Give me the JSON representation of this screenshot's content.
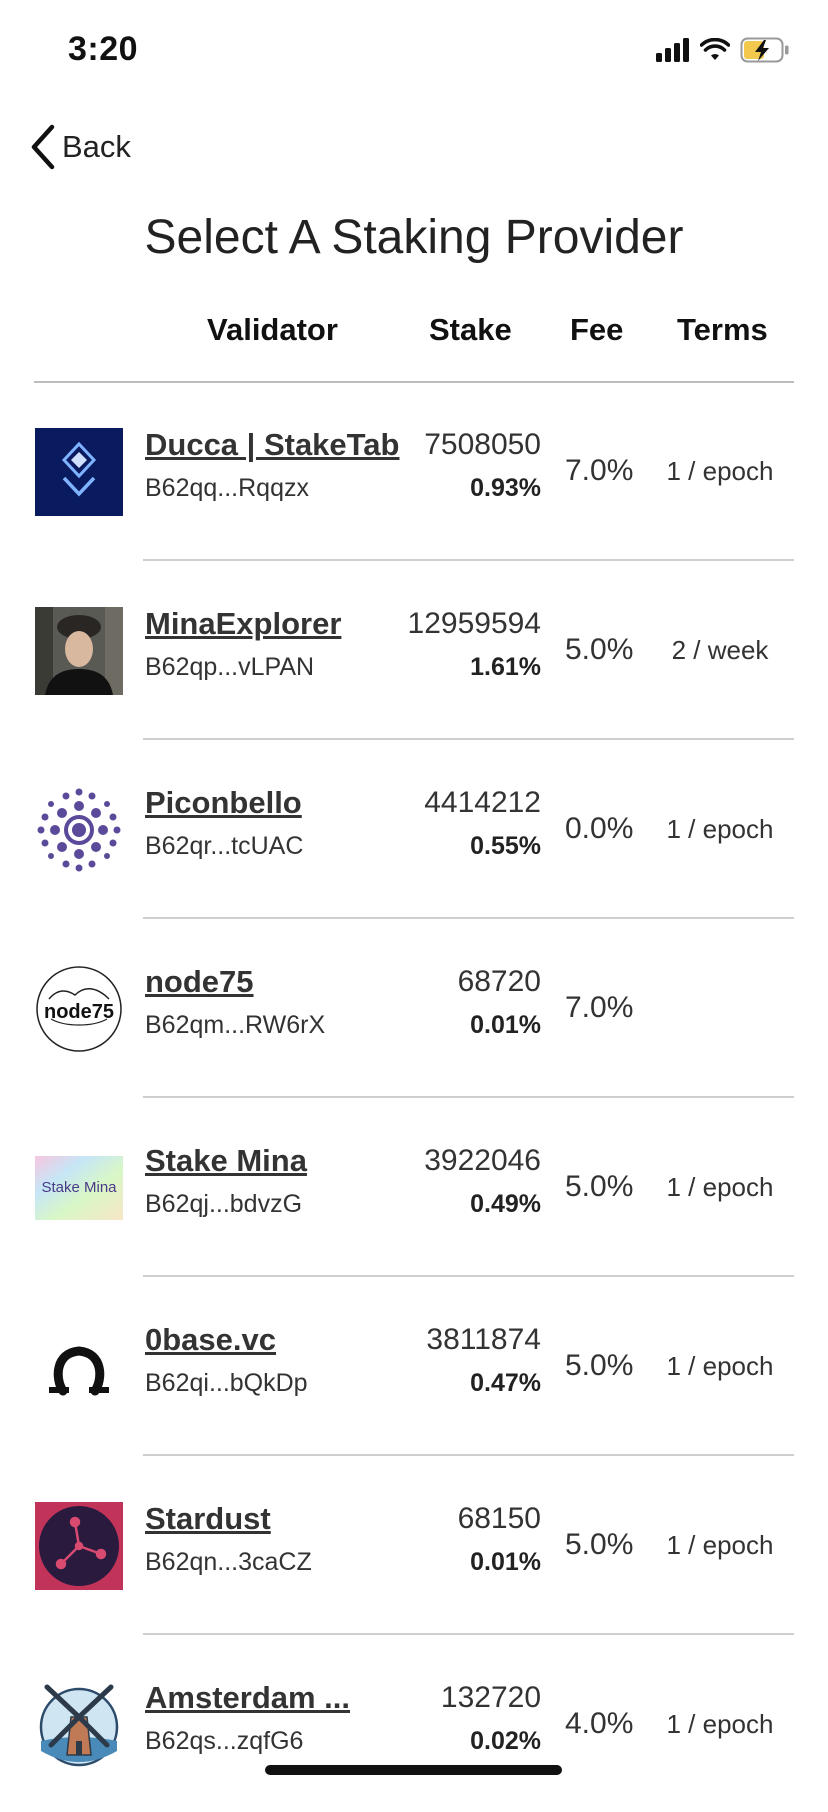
{
  "status_bar": {
    "time": "3:20"
  },
  "nav": {
    "back_label": "Back"
  },
  "page": {
    "title": "Select A Staking Provider"
  },
  "columns": {
    "validator": "Validator",
    "stake": "Stake",
    "fee": "Fee",
    "terms": "Terms"
  },
  "providers": [
    {
      "name": "Ducca | StakeTab",
      "address": "B62qq...Rqqzx",
      "stake": "7508050",
      "percent": "0.93%",
      "fee": "7.0%",
      "terms": "1 / epoch",
      "logo": "ducca-logo"
    },
    {
      "name": "MinaExplorer",
      "address": "B62qp...vLPAN",
      "stake": "12959594",
      "percent": "1.61%",
      "fee": "5.0%",
      "terms": "2 / week",
      "logo": "minaexplorer-avatar"
    },
    {
      "name": "Piconbello",
      "address": "B62qr...tcUAC",
      "stake": "4414212",
      "percent": "0.55%",
      "fee": "0.0%",
      "terms": "1 / epoch",
      "logo": "piconbello-logo"
    },
    {
      "name": "node75",
      "address": "B62qm...RW6rX",
      "stake": "68720",
      "percent": "0.01%",
      "fee": "7.0%",
      "terms": "",
      "logo": "node75-logo"
    },
    {
      "name": "Stake Mina",
      "address": "B62qj...bdvzG",
      "stake": "3922046",
      "percent": "0.49%",
      "fee": "5.0%",
      "terms": "1 / epoch",
      "logo": "stake-mina-logo",
      "logo_text": "Stake Mina"
    },
    {
      "name": "0base.vc",
      "address": "B62qi...bQkDp",
      "stake": "3811874",
      "percent": "0.47%",
      "fee": "5.0%",
      "terms": "1 / epoch",
      "logo": "0base-logo"
    },
    {
      "name": "Stardust",
      "address": "B62qn...3caCZ",
      "stake": "68150",
      "percent": "0.01%",
      "fee": "5.0%",
      "terms": "1 / epoch",
      "logo": "stardust-logo"
    },
    {
      "name": "Amsterdam ...",
      "address": "B62qs...zqfG6",
      "stake": "132720",
      "percent": "0.02%",
      "fee": "4.0%",
      "terms": "1 / epoch",
      "logo": "amsterdam-windmill-logo"
    }
  ]
}
